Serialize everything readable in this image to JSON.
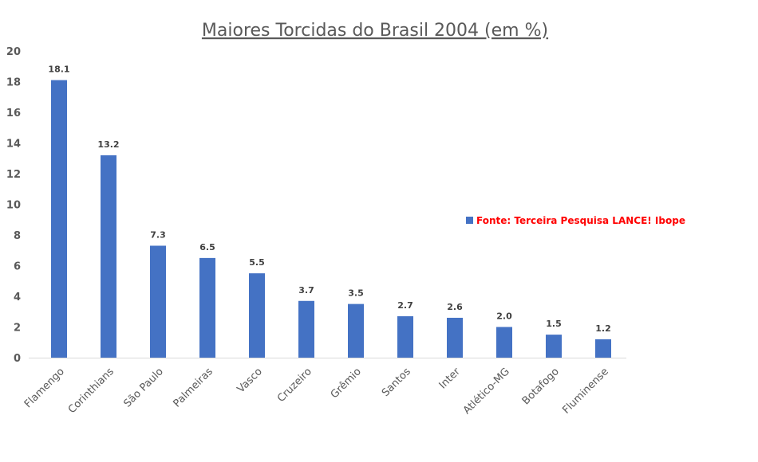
{
  "chart_data": {
    "type": "bar",
    "title": "Maiores Torcidas do Brasil 2004 (em %)",
    "xlabel": "",
    "ylabel": "",
    "ylim": [
      0,
      20
    ],
    "yticks": [
      0,
      2,
      4,
      6,
      8,
      10,
      12,
      14,
      16,
      18,
      20
    ],
    "grid": false,
    "legend_position": "right",
    "categories": [
      "Flamengo",
      "Corinthians",
      "São Paulo",
      "Palmeiras",
      "Vasco",
      "Cruzeiro",
      "Grêmio",
      "Santos",
      "Inter",
      "Atlético-MG",
      "Botafogo",
      "Fluminense"
    ],
    "series": [
      {
        "name": "Fonte: Terceira Pesquisa LANCE! Ibope",
        "values": [
          18.1,
          13.2,
          7.3,
          6.5,
          5.5,
          3.7,
          3.5,
          2.7,
          2.6,
          2.0,
          1.5,
          1.2
        ],
        "value_labels": [
          "18.1",
          "13.2",
          "7.3",
          "6.5",
          "5.5",
          "3.7",
          "3.5",
          "2.7",
          "2.6",
          "2.0",
          "1.5",
          "1.2"
        ]
      }
    ]
  },
  "colors": {
    "bar": "#4472c4",
    "legend_text": "#ff0000",
    "axis_line": "#d9d9d9",
    "text": "#595959"
  }
}
